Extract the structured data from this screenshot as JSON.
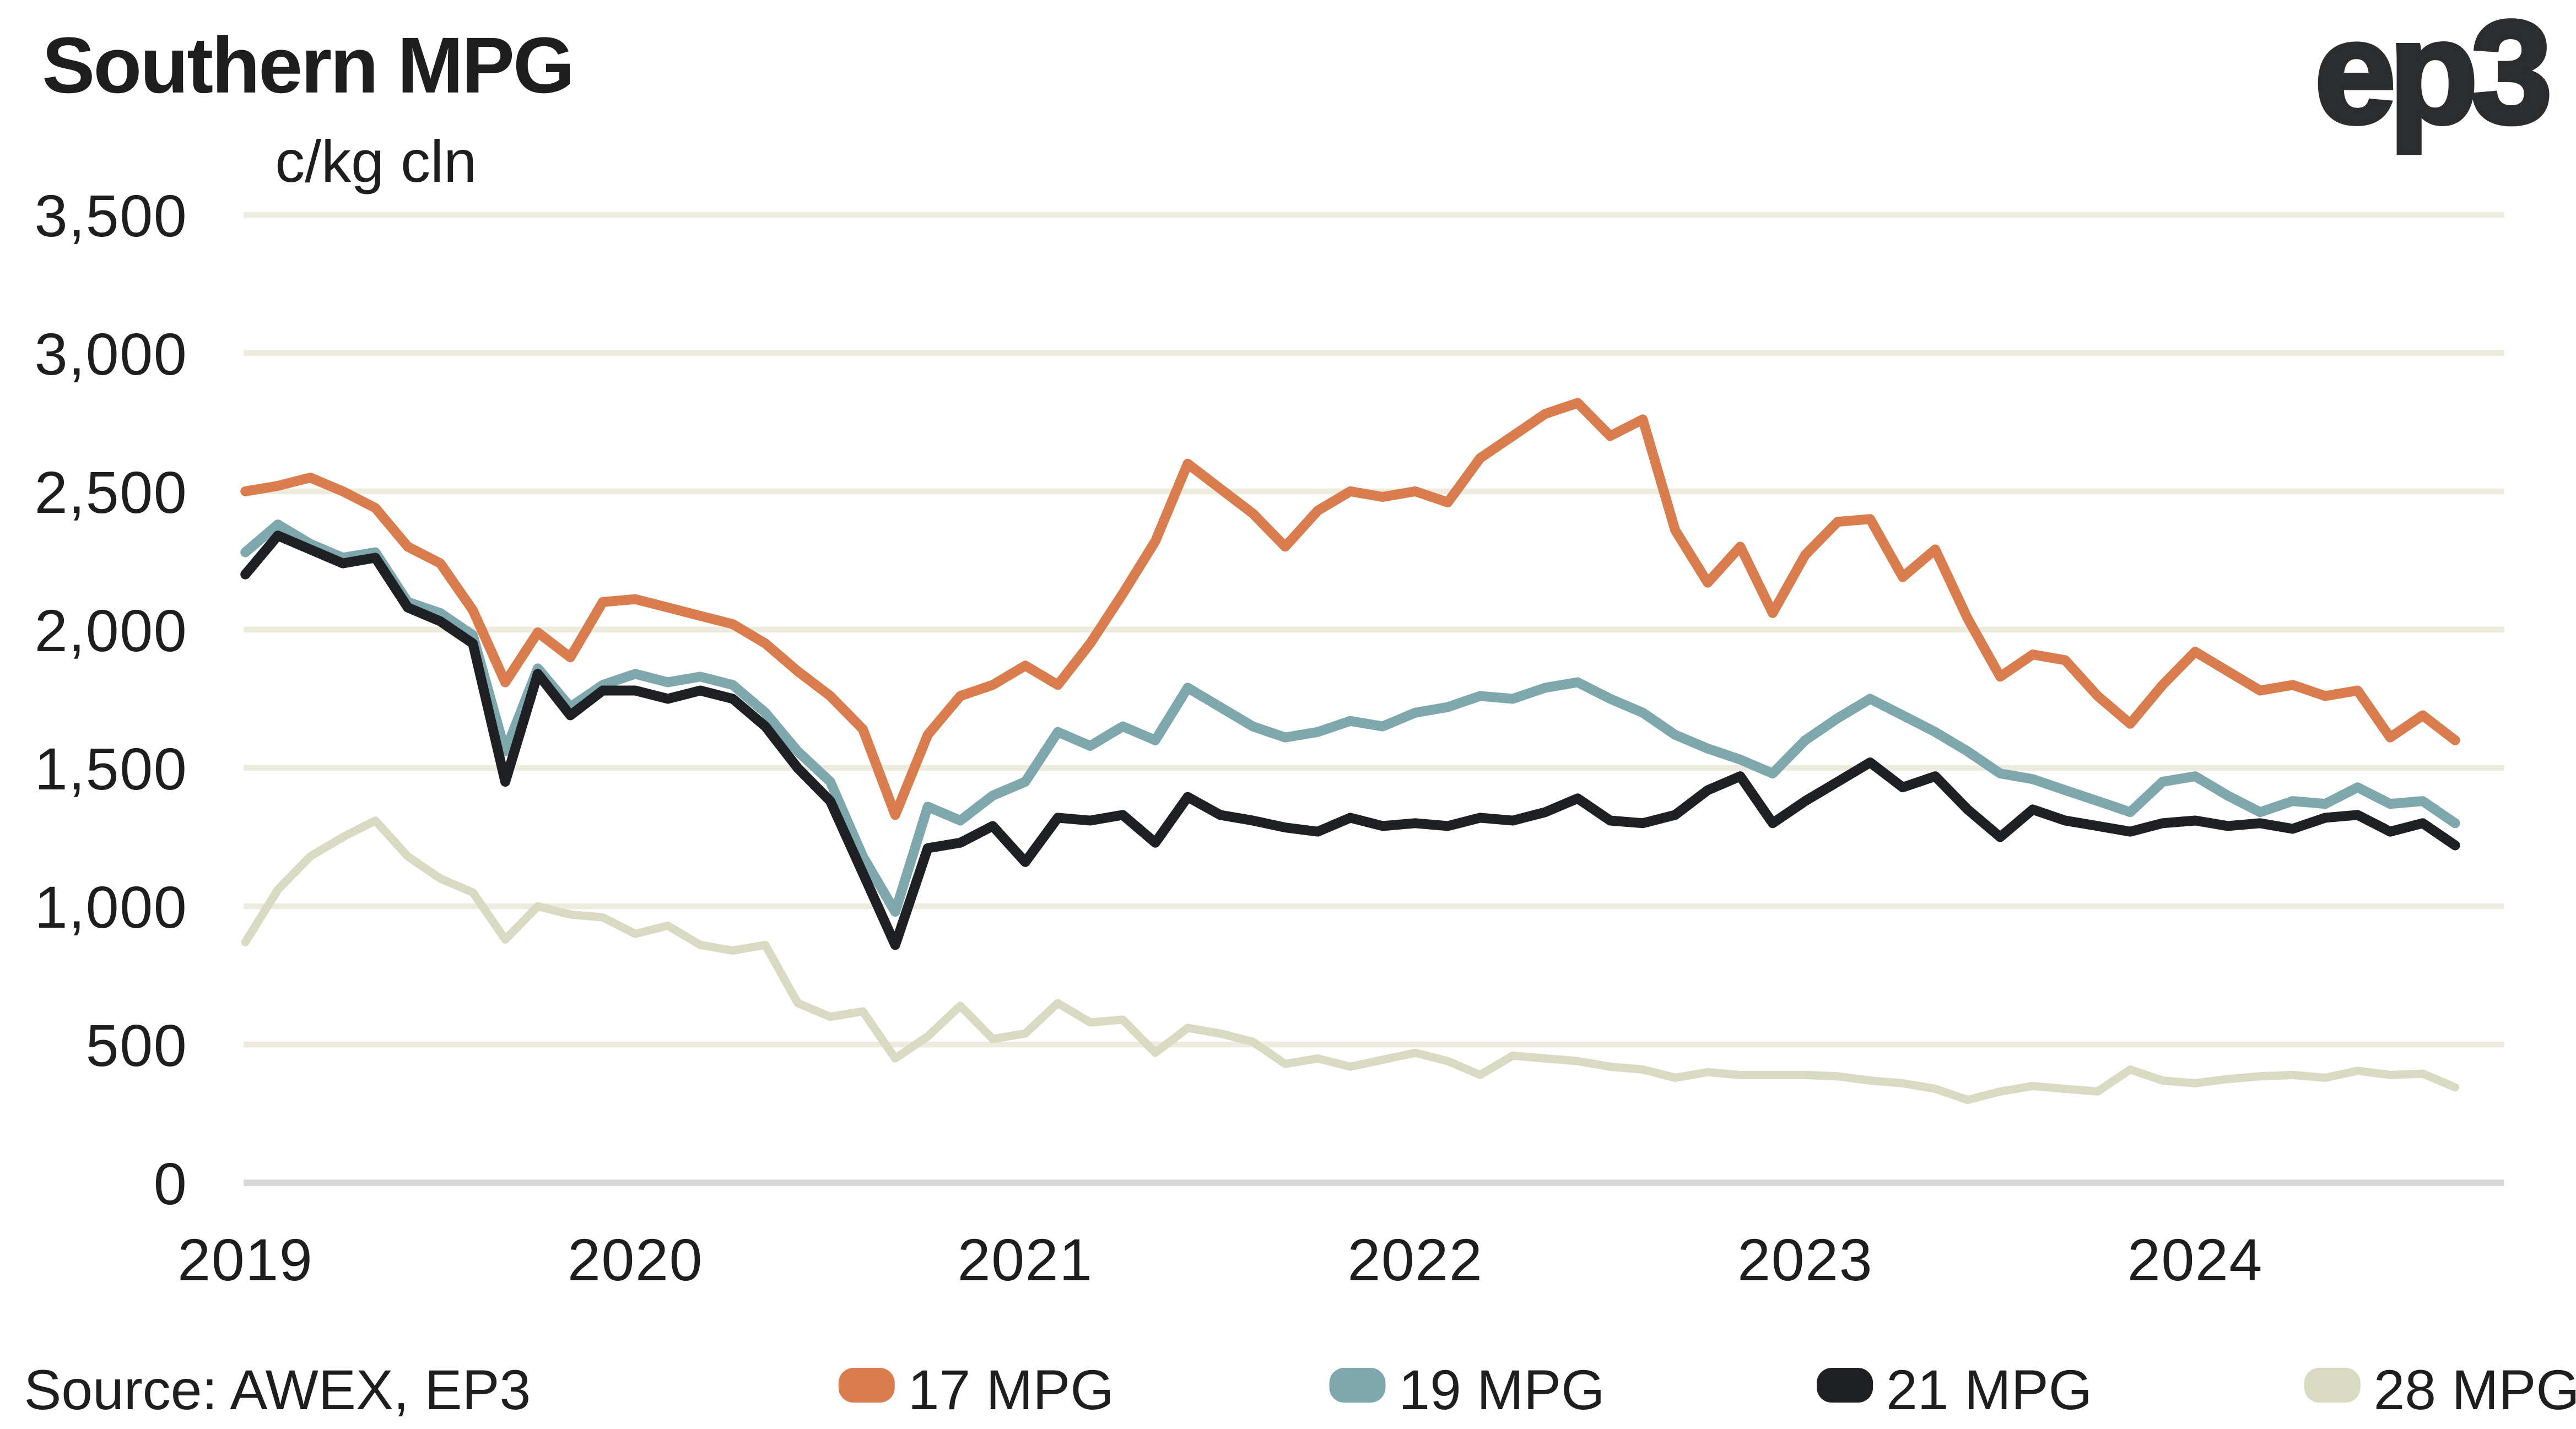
{
  "header": {
    "title": "Southern MPG",
    "logo": "ep3"
  },
  "footer": {
    "source": "Source: AWEX, EP3"
  },
  "colors": {
    "orange": "#D97D4F",
    "teal": "#7FA7AE",
    "black": "#1F2023",
    "sage": "#D8DAC1",
    "gridline": "#ECEBDE",
    "zeroline": "#D8D8D8",
    "text": "#1E1E1E"
  },
  "chart_data": {
    "type": "line",
    "title": "Southern MPG",
    "ylabel": "c/kg cln",
    "xlabel": "",
    "grid": "horizontal",
    "legend_position": "bottom",
    "ylim": [
      0,
      3500
    ],
    "y_ticks": [
      0,
      500,
      1000,
      1500,
      2000,
      2500,
      3000,
      3500
    ],
    "y_tick_labels": [
      "0",
      "500",
      "1,000",
      "1,500",
      "2,000",
      "2,500",
      "3,000",
      "3,500"
    ],
    "x_tick_labels": [
      "2019",
      "2020",
      "2021",
      "2022",
      "2023",
      "2024"
    ],
    "x_start_year": 2019.0,
    "x_step_years": 0.0833333,
    "x_end_year": 2024.67,
    "series": [
      {
        "name": "17 MPG",
        "color": "#D97D4F",
        "values": [
          2500,
          2520,
          2550,
          2500,
          2440,
          2300,
          2240,
          2070,
          1810,
          1990,
          1900,
          2100,
          2110,
          2080,
          2050,
          2020,
          1950,
          1850,
          1760,
          1640,
          1330,
          1620,
          1760,
          1800,
          1870,
          1800,
          1950,
          2130,
          2320,
          2600,
          2510,
          2420,
          2300,
          2430,
          2500,
          2480,
          2500,
          2460,
          2620,
          2700,
          2780,
          2820,
          2700,
          2760,
          2360,
          2170,
          2300,
          2060,
          2270,
          2390,
          2400,
          2190,
          2290,
          2040,
          1830,
          1910,
          1890,
          1760,
          1660,
          1800,
          1920,
          1850,
          1780,
          1800,
          1760,
          1780,
          1610,
          1690,
          1600
        ]
      },
      {
        "name": "19 MPG",
        "color": "#7FA7AE",
        "values": [
          2280,
          2380,
          2310,
          2260,
          2280,
          2100,
          2060,
          1980,
          1560,
          1860,
          1720,
          1800,
          1840,
          1810,
          1830,
          1800,
          1700,
          1560,
          1450,
          1180,
          980,
          1360,
          1310,
          1400,
          1450,
          1630,
          1580,
          1650,
          1600,
          1790,
          1720,
          1650,
          1610,
          1630,
          1670,
          1650,
          1700,
          1720,
          1760,
          1750,
          1790,
          1810,
          1750,
          1700,
          1620,
          1570,
          1530,
          1480,
          1600,
          1680,
          1750,
          1690,
          1630,
          1560,
          1480,
          1460,
          1420,
          1380,
          1340,
          1450,
          1470,
          1400,
          1340,
          1380,
          1370,
          1430,
          1370,
          1380,
          1300
        ]
      },
      {
        "name": "21 MPG",
        "color": "#1F2023",
        "values": [
          2200,
          2340,
          2290,
          2240,
          2260,
          2080,
          2030,
          1950,
          1450,
          1840,
          1690,
          1780,
          1780,
          1750,
          1780,
          1750,
          1650,
          1500,
          1380,
          1120,
          860,
          1210,
          1230,
          1290,
          1160,
          1320,
          1310,
          1330,
          1230,
          1395,
          1330,
          1310,
          1285,
          1270,
          1320,
          1290,
          1300,
          1290,
          1320,
          1310,
          1340,
          1390,
          1310,
          1300,
          1330,
          1420,
          1470,
          1300,
          1380,
          1450,
          1520,
          1430,
          1470,
          1350,
          1250,
          1350,
          1310,
          1290,
          1270,
          1300,
          1310,
          1290,
          1300,
          1280,
          1320,
          1330,
          1270,
          1300,
          1220
        ]
      },
      {
        "name": "28 MPG",
        "color": "#D8DAC1",
        "values": [
          870,
          1060,
          1180,
          1250,
          1310,
          1180,
          1100,
          1050,
          880,
          1000,
          970,
          960,
          900,
          930,
          860,
          840,
          860,
          650,
          600,
          620,
          450,
          530,
          640,
          520,
          540,
          650,
          580,
          590,
          470,
          560,
          540,
          510,
          430,
          450,
          420,
          445,
          470,
          440,
          390,
          460,
          450,
          440,
          420,
          410,
          380,
          400,
          390,
          390,
          390,
          385,
          370,
          360,
          340,
          300,
          330,
          350,
          340,
          330,
          410,
          370,
          360,
          375,
          385,
          390,
          380,
          405,
          390,
          395,
          345
        ]
      }
    ]
  }
}
